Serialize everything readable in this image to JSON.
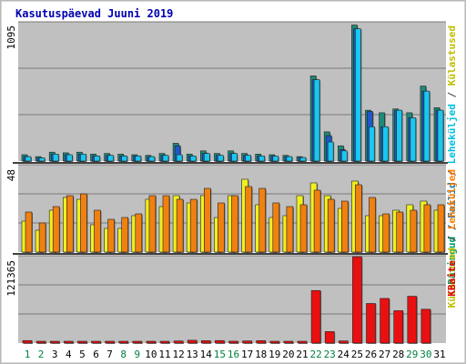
{
  "chart_data": [
    {
      "type": "bar",
      "title": "Kasutuspäevad Juuni 2019",
      "ytick_label": "1095",
      "right_legend": [
        {
          "text": "Päringud",
          "color": "#00a070"
        },
        {
          "text": "Failid",
          "color": "#0070c0"
        },
        {
          "text": "Leheküljed",
          "color": "#00c0e0"
        },
        {
          "text": "Külastused",
          "color": "#c0c000"
        }
      ],
      "ylim": [
        0,
        1095
      ],
      "categories": [
        "1",
        "2",
        "3",
        "4",
        "5",
        "6",
        "7",
        "8",
        "9",
        "10",
        "11",
        "12",
        "13",
        "14",
        "15",
        "16",
        "17",
        "18",
        "19",
        "20",
        "21",
        "22",
        "23",
        "24",
        "25",
        "26",
        "27",
        "28",
        "29",
        "30",
        "31"
      ],
      "weekend_days": [
        "1",
        "2",
        "8",
        "9",
        "15",
        "16",
        "22",
        "23",
        "29",
        "30"
      ],
      "series": [
        {
          "name": "Päringud",
          "color": "#1e8a78",
          "values": [
            50,
            35,
            70,
            65,
            70,
            55,
            60,
            55,
            50,
            45,
            60,
            140,
            55,
            80,
            60,
            80,
            60,
            55,
            50,
            45,
            35,
            670,
            230,
            120,
            1070,
            400,
            380,
            410,
            380,
            590,
            420
          ]
        },
        {
          "name": "Failid",
          "color": "#1f57c8",
          "values": [
            35,
            25,
            55,
            50,
            55,
            40,
            45,
            40,
            40,
            35,
            45,
            120,
            40,
            60,
            45,
            60,
            45,
            40,
            38,
            35,
            28,
            640,
            200,
            90,
            1040,
            390,
            270,
            400,
            340,
            550,
            400
          ]
        },
        {
          "name": "Leheküljed",
          "color": "#18c8f0",
          "values": [
            35,
            25,
            55,
            50,
            55,
            40,
            45,
            40,
            40,
            35,
            45,
            50,
            40,
            60,
            45,
            60,
            45,
            40,
            38,
            35,
            28,
            640,
            150,
            80,
            1040,
            270,
            270,
            400,
            340,
            550,
            400
          ]
        }
      ]
    },
    {
      "type": "bar",
      "ytick_label": "48",
      "ylim": [
        0,
        48
      ],
      "series": [
        {
          "name": "Külastused",
          "color": "#f0f020",
          "values": [
            17,
            12,
            23,
            30,
            29,
            15,
            13,
            13,
            20,
            29,
            25,
            31,
            27,
            31,
            19,
            31,
            40,
            26,
            19,
            20,
            31,
            38,
            31,
            24,
            39,
            20,
            20,
            23,
            26,
            28,
            23
          ]
        },
        {
          "name": "Leheküljed",
          "color": "#f08010",
          "values": [
            22,
            16,
            25,
            31,
            32,
            23,
            18,
            19,
            21,
            31,
            31,
            29,
            29,
            35,
            27,
            31,
            36,
            35,
            27,
            25,
            26,
            34,
            29,
            28,
            37,
            30,
            21,
            22,
            23,
            26,
            26
          ]
        }
      ]
    },
    {
      "type": "bar",
      "ytick_label": "121365",
      "right_label": "KBaite",
      "ylim": [
        0,
        121365
      ],
      "series": [
        {
          "name": "KBaite",
          "color": "#e81010",
          "values": [
            3500,
            1200,
            1400,
            1800,
            2500,
            1600,
            1900,
            1600,
            1400,
            1800,
            2400,
            2900,
            3900,
            3300,
            3500,
            2600,
            3000,
            3400,
            2400,
            2500,
            1900,
            73000,
            16000,
            3000,
            120000,
            55000,
            62000,
            45000,
            65000,
            47000,
            0
          ]
        }
      ]
    }
  ],
  "colors": {
    "background": "#ffffff",
    "outer_frame": "#b8b8b8",
    "plot_bg": "#c0c0c0",
    "grid": "#707070",
    "title": "#0000b0",
    "weekday_label": "#000000",
    "weekend_label": "#008040",
    "side_label_orange": "#ff8000",
    "side_label_red": "#e00000",
    "separator": "#404040"
  }
}
